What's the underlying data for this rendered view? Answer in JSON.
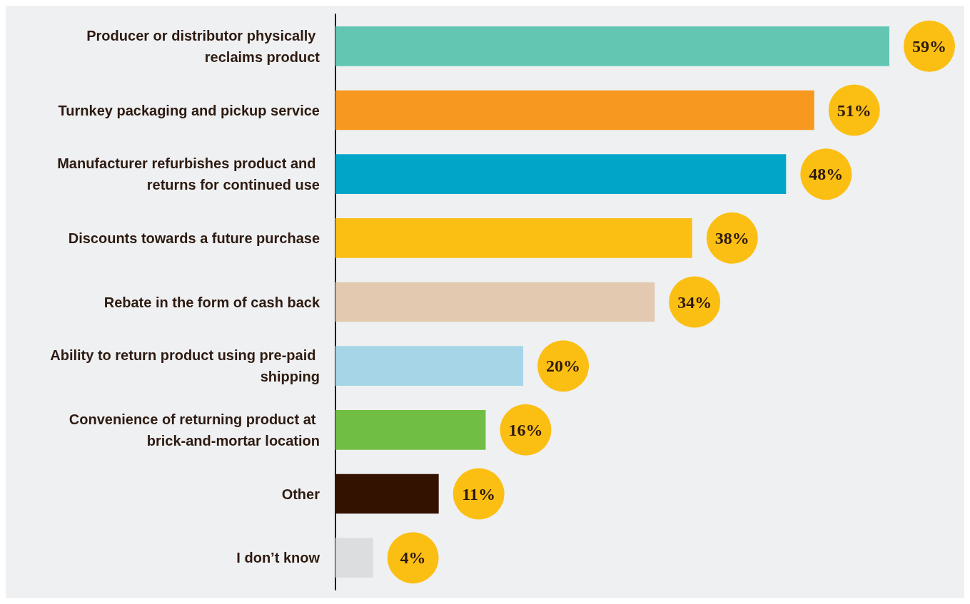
{
  "chart_data": {
    "type": "bar",
    "orientation": "horizontal",
    "categories": [
      "Producer or distributor physically reclaims product",
      "Turnkey packaging and pickup service",
      "Manufacturer refurbishes product and returns for continued use",
      "Discounts towards a future purchase",
      "Rebate in the form of cash back",
      "Ability to return product using pre-paid shipping",
      "Convenience of returning product at brick-and-mortar location",
      "Other",
      "I don’t know"
    ],
    "values": [
      59,
      51,
      48,
      38,
      34,
      20,
      16,
      11,
      4
    ],
    "colors": [
      "#62c6b3",
      "#f7981f",
      "#00a6c8",
      "#fbbf14",
      "#e2c9b0",
      "#a5d5e7",
      "#70bf44",
      "#341200",
      "#dcdddf"
    ],
    "value_labels": [
      "59%",
      "51%",
      "48%",
      "38%",
      "34%",
      "20%",
      "16%",
      "11%",
      "4%"
    ]
  }
}
